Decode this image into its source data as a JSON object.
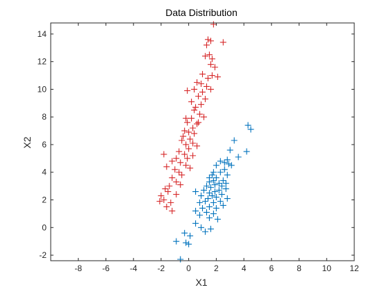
{
  "chart_data": {
    "type": "scatter",
    "title": "Data Distribution",
    "xlabel": "X1",
    "ylabel": "X2",
    "xlim": [
      -10,
      12
    ],
    "ylim": [
      -2.4,
      14.8
    ],
    "xticks": [
      -8,
      -6,
      -4,
      -2,
      0,
      2,
      4,
      6,
      8,
      10,
      12
    ],
    "yticks": [
      -2,
      0,
      2,
      4,
      6,
      8,
      10,
      12,
      14
    ],
    "grid": false,
    "marker": "+",
    "series": [
      {
        "color": "#d62728",
        "points": [
          [
            1.8,
            14.7
          ],
          [
            1.6,
            13.5
          ],
          [
            1.4,
            13.6
          ],
          [
            1.3,
            13.2
          ],
          [
            2.5,
            13.4
          ],
          [
            1.5,
            12.5
          ],
          [
            1.7,
            12.2
          ],
          [
            1.2,
            12.4
          ],
          [
            1.6,
            11.8
          ],
          [
            1.9,
            11.6
          ],
          [
            1.7,
            11.0
          ],
          [
            1.0,
            11.1
          ],
          [
            0.9,
            10.4
          ],
          [
            1.4,
            10.8
          ],
          [
            2.1,
            10.9
          ],
          [
            1.3,
            10.2
          ],
          [
            1.6,
            10.0
          ],
          [
            0.6,
            10.5
          ],
          [
            0.4,
            10.0
          ],
          [
            -0.1,
            9.9
          ],
          [
            0.7,
            9.5
          ],
          [
            1.0,
            9.8
          ],
          [
            0.2,
            9.1
          ],
          [
            0.9,
            8.9
          ],
          [
            1.2,
            9.3
          ],
          [
            0.5,
            8.7
          ],
          [
            0.8,
            8.2
          ],
          [
            0.4,
            8.5
          ],
          [
            0.2,
            7.9
          ],
          [
            0.7,
            7.6
          ],
          [
            1.1,
            8.0
          ],
          [
            -0.1,
            7.6
          ],
          [
            -0.2,
            7.9
          ],
          [
            0.3,
            7.2
          ],
          [
            0.6,
            7.5
          ],
          [
            -0.3,
            7.0
          ],
          [
            0.0,
            6.9
          ],
          [
            0.4,
            6.8
          ],
          [
            -0.4,
            6.6
          ],
          [
            0.1,
            6.4
          ],
          [
            0.3,
            6.1
          ],
          [
            -0.5,
            6.3
          ],
          [
            -0.2,
            6.0
          ],
          [
            0.6,
            5.9
          ],
          [
            0.0,
            5.7
          ],
          [
            -0.7,
            5.5
          ],
          [
            -0.3,
            5.3
          ],
          [
            -0.1,
            5.0
          ],
          [
            0.3,
            5.2
          ],
          [
            -0.9,
            5.0
          ],
          [
            -0.6,
            4.7
          ],
          [
            -0.2,
            4.5
          ],
          [
            -1.8,
            5.3
          ],
          [
            -1.2,
            4.8
          ],
          [
            -1.6,
            4.4
          ],
          [
            -1.0,
            4.2
          ],
          [
            -0.7,
            4.0
          ],
          [
            -0.5,
            3.8
          ],
          [
            -1.2,
            3.6
          ],
          [
            -0.9,
            3.3
          ],
          [
            -1.4,
            3.0
          ],
          [
            -1.7,
            2.8
          ],
          [
            -2.0,
            2.3
          ],
          [
            -1.5,
            2.6
          ],
          [
            -1.8,
            2.0
          ],
          [
            -2.1,
            1.9
          ],
          [
            -1.3,
            1.8
          ],
          [
            -1.6,
            1.5
          ],
          [
            -1.2,
            1.2
          ],
          [
            -0.9,
            2.4
          ],
          [
            -0.6,
            3.1
          ],
          [
            0.1,
            4.3
          ]
        ]
      },
      {
        "color": "#0072bd",
        "points": [
          [
            4.3,
            7.4
          ],
          [
            4.5,
            7.1
          ],
          [
            3.3,
            6.3
          ],
          [
            4.2,
            5.5
          ],
          [
            3.6,
            5.1
          ],
          [
            3.0,
            5.6
          ],
          [
            2.8,
            4.9
          ],
          [
            2.9,
            4.6
          ],
          [
            2.6,
            4.7
          ],
          [
            2.3,
            4.8
          ],
          [
            2.0,
            4.5
          ],
          [
            2.6,
            4.2
          ],
          [
            2.3,
            4.0
          ],
          [
            1.8,
            4.0
          ],
          [
            2.8,
            3.8
          ],
          [
            2.0,
            3.6
          ],
          [
            1.5,
            3.6
          ],
          [
            2.5,
            3.4
          ],
          [
            1.8,
            3.4
          ],
          [
            1.5,
            3.3
          ],
          [
            2.2,
            3.2
          ],
          [
            2.4,
            3.0
          ],
          [
            1.9,
            3.1
          ],
          [
            1.6,
            2.9
          ],
          [
            1.3,
            3.0
          ],
          [
            2.7,
            2.8
          ],
          [
            2.2,
            2.7
          ],
          [
            1.9,
            2.6
          ],
          [
            1.5,
            2.5
          ],
          [
            1.1,
            2.7
          ],
          [
            0.5,
            2.6
          ],
          [
            2.4,
            2.4
          ],
          [
            2.0,
            2.2
          ],
          [
            1.7,
            2.3
          ],
          [
            1.4,
            2.1
          ],
          [
            0.9,
            2.3
          ],
          [
            2.8,
            2.1
          ],
          [
            2.3,
            1.9
          ],
          [
            1.8,
            1.8
          ],
          [
            1.2,
            1.9
          ],
          [
            0.8,
            1.8
          ],
          [
            2.5,
            1.6
          ],
          [
            2.0,
            1.4
          ],
          [
            1.5,
            1.5
          ],
          [
            1.0,
            1.4
          ],
          [
            0.5,
            1.2
          ],
          [
            1.3,
            1.1
          ],
          [
            1.8,
            1.0
          ],
          [
            0.8,
            0.9
          ],
          [
            1.5,
            0.7
          ],
          [
            2.1,
            0.6
          ],
          [
            0.5,
            0.3
          ],
          [
            0.9,
            0.0
          ],
          [
            1.6,
            -0.1
          ],
          [
            1.2,
            -0.3
          ],
          [
            0.1,
            -0.6
          ],
          [
            -0.3,
            -0.4
          ],
          [
            -0.9,
            -1.0
          ],
          [
            -0.2,
            -1.1
          ],
          [
            0.0,
            -1.2
          ],
          [
            -0.6,
            -2.3
          ],
          [
            3.1,
            4.5
          ],
          [
            2.7,
            3.2
          ],
          [
            1.7,
            3.8
          ]
        ]
      }
    ]
  }
}
